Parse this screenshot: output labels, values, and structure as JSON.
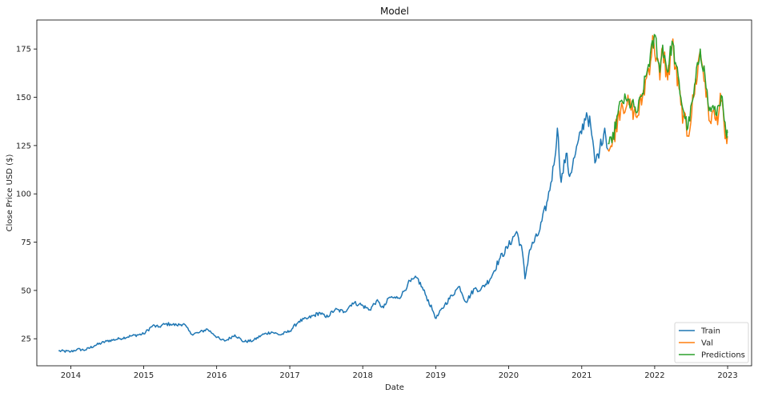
{
  "chart_data": {
    "type": "line",
    "title": "Model",
    "xlabel": "Date",
    "ylabel": "Close Price USD ($)",
    "x_axis": {
      "type": "date",
      "range": [
        "2013-07-15",
        "2023-05-01"
      ],
      "ticks": [
        "2014",
        "2015",
        "2016",
        "2017",
        "2018",
        "2019",
        "2020",
        "2021",
        "2022",
        "2023"
      ]
    },
    "y_axis": {
      "range": [
        11,
        190
      ],
      "ticks": [
        25,
        50,
        75,
        100,
        125,
        150,
        175
      ]
    },
    "grid": false,
    "legend_position": "bottom-right",
    "series": [
      {
        "name": "Train",
        "color": "#1f77b4",
        "points": [
          [
            "2013-11-01",
            18.7
          ],
          [
            "2014-01-01",
            18.3
          ],
          [
            "2014-02-01",
            19.5
          ],
          [
            "2014-03-15",
            19.2
          ],
          [
            "2014-05-01",
            21.5
          ],
          [
            "2014-07-01",
            23.8
          ],
          [
            "2014-09-01",
            25.0
          ],
          [
            "2014-11-01",
            26.5
          ],
          [
            "2015-01-01",
            27.5
          ],
          [
            "2015-02-15",
            31.8
          ],
          [
            "2015-03-15",
            31.0
          ],
          [
            "2015-04-15",
            32.5
          ],
          [
            "2015-05-15",
            32.6
          ],
          [
            "2015-06-15",
            32.0
          ],
          [
            "2015-07-20",
            32.8
          ],
          [
            "2015-08-25",
            27.5
          ],
          [
            "2015-10-01",
            28.0
          ],
          [
            "2015-11-15",
            30.0
          ],
          [
            "2015-12-15",
            27.5
          ],
          [
            "2016-01-20",
            24.5
          ],
          [
            "2016-02-15",
            24.0
          ],
          [
            "2016-04-01",
            27.0
          ],
          [
            "2016-05-15",
            23.5
          ],
          [
            "2016-07-01",
            24.0
          ],
          [
            "2016-08-15",
            27.0
          ],
          [
            "2016-10-01",
            28.5
          ],
          [
            "2016-11-15",
            27.0
          ],
          [
            "2017-01-01",
            29.0
          ],
          [
            "2017-02-15",
            34.0
          ],
          [
            "2017-04-01",
            35.5
          ],
          [
            "2017-06-01",
            38.5
          ],
          [
            "2017-07-01",
            36.0
          ],
          [
            "2017-08-15",
            40.0
          ],
          [
            "2017-10-01",
            39.0
          ],
          [
            "2017-11-10",
            43.5
          ],
          [
            "2017-12-15",
            43.0
          ],
          [
            "2018-02-05",
            40.0
          ],
          [
            "2018-03-10",
            44.5
          ],
          [
            "2018-04-15",
            41.0
          ],
          [
            "2018-05-15",
            46.5
          ],
          [
            "2018-06-15",
            46.0
          ],
          [
            "2018-07-15",
            47.5
          ],
          [
            "2018-08-15",
            53.5
          ],
          [
            "2018-10-01",
            56.5
          ],
          [
            "2018-11-15",
            47.0
          ],
          [
            "2018-12-20",
            39.0
          ],
          [
            "2019-01-03",
            35.5
          ],
          [
            "2019-02-15",
            42.5
          ],
          [
            "2019-04-15",
            50.5
          ],
          [
            "2019-05-01",
            52.0
          ],
          [
            "2019-06-01",
            44.0
          ],
          [
            "2019-07-15",
            51.0
          ],
          [
            "2019-08-15",
            50.5
          ],
          [
            "2019-10-01",
            56.0
          ],
          [
            "2019-11-15",
            66.0
          ],
          [
            "2019-12-31",
            73.0
          ],
          [
            "2020-02-10",
            80.5
          ],
          [
            "2020-03-10",
            70.0
          ],
          [
            "2020-03-23",
            56.0
          ],
          [
            "2020-04-15",
            71.0
          ],
          [
            "2020-06-01",
            80.0
          ],
          [
            "2020-07-15",
            97.0
          ],
          [
            "2020-08-15",
            115.0
          ],
          [
            "2020-09-01",
            134.0
          ],
          [
            "2020-09-20",
            106.0
          ],
          [
            "2020-10-15",
            121.0
          ],
          [
            "2020-11-01",
            109.0
          ],
          [
            "2020-12-01",
            121.0
          ],
          [
            "2021-01-25",
            142.0
          ],
          [
            "2021-02-15",
            135.0
          ],
          [
            "2021-03-08",
            116.0
          ],
          [
            "2021-04-01",
            123.0
          ],
          [
            "2021-04-26",
            134.0
          ],
          [
            "2021-05-12",
            123.0
          ]
        ]
      },
      {
        "name": "Val",
        "color": "#ff7f0e",
        "points": [
          [
            "2021-05-12",
            123.0
          ],
          [
            "2021-06-01",
            124.5
          ],
          [
            "2021-07-01",
            140.0
          ],
          [
            "2021-07-20",
            147.0
          ],
          [
            "2021-08-15",
            146.0
          ],
          [
            "2021-09-20",
            143.0
          ],
          [
            "2021-10-04",
            139.5
          ],
          [
            "2021-11-01",
            150.0
          ],
          [
            "2021-12-01",
            165.0
          ],
          [
            "2021-12-27",
            180.0
          ],
          [
            "2022-01-27",
            159.0
          ],
          [
            "2022-02-10",
            176.0
          ],
          [
            "2022-03-07",
            159.0
          ],
          [
            "2022-03-29",
            178.0
          ],
          [
            "2022-04-15",
            165.0
          ],
          [
            "2022-05-12",
            146.0
          ],
          [
            "2022-05-25",
            140.0
          ],
          [
            "2022-06-16",
            130.0
          ],
          [
            "2022-07-15",
            150.0
          ],
          [
            "2022-08-17",
            174.0
          ],
          [
            "2022-09-10",
            158.0
          ],
          [
            "2022-09-30",
            138.0
          ],
          [
            "2022-10-15",
            142.0
          ],
          [
            "2022-11-03",
            138.0
          ],
          [
            "2022-11-30",
            148.0
          ],
          [
            "2022-12-15",
            135.0
          ],
          [
            "2022-12-28",
            126.0
          ],
          [
            "2022-12-31",
            129.9
          ]
        ]
      },
      {
        "name": "Predictions",
        "color": "#2ca02c",
        "points": [
          [
            "2021-05-12",
            126.0
          ],
          [
            "2021-06-01",
            126.5
          ],
          [
            "2021-07-01",
            141.5
          ],
          [
            "2021-07-20",
            148.5
          ],
          [
            "2021-08-15",
            148.0
          ],
          [
            "2021-09-20",
            145.0
          ],
          [
            "2021-10-04",
            142.0
          ],
          [
            "2021-11-01",
            152.0
          ],
          [
            "2021-12-01",
            167.0
          ],
          [
            "2022-01-04",
            182.0
          ],
          [
            "2022-01-27",
            163.0
          ],
          [
            "2022-02-10",
            177.0
          ],
          [
            "2022-03-07",
            163.0
          ],
          [
            "2022-03-29",
            179.0
          ],
          [
            "2022-04-15",
            168.0
          ],
          [
            "2022-05-12",
            150.0
          ],
          [
            "2022-05-25",
            143.0
          ],
          [
            "2022-06-16",
            134.0
          ],
          [
            "2022-07-15",
            151.0
          ],
          [
            "2022-08-17",
            175.0
          ],
          [
            "2022-09-10",
            161.0
          ],
          [
            "2022-09-30",
            143.0
          ],
          [
            "2022-10-15",
            145.0
          ],
          [
            "2022-11-03",
            141.0
          ],
          [
            "2022-11-30",
            151.0
          ],
          [
            "2022-12-15",
            138.0
          ],
          [
            "2022-12-28",
            129.0
          ],
          [
            "2022-12-31",
            131.5
          ]
        ]
      }
    ]
  }
}
